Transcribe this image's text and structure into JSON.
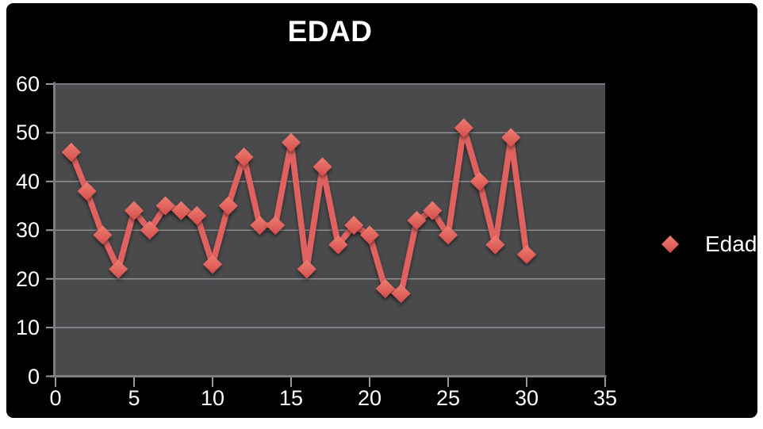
{
  "chart_data": {
    "type": "line",
    "title": "EDAD",
    "xlabel": "",
    "ylabel": "",
    "xlim": [
      0,
      35
    ],
    "ylim": [
      0,
      60
    ],
    "x_ticks": [
      0,
      5,
      10,
      15,
      20,
      25,
      30,
      35
    ],
    "y_ticks": [
      0,
      10,
      20,
      30,
      40,
      50,
      60
    ],
    "grid": "horizontal",
    "legend_position": "right",
    "series": [
      {
        "name": "Edad",
        "x": [
          1,
          2,
          3,
          4,
          5,
          6,
          7,
          8,
          9,
          10,
          11,
          12,
          13,
          14,
          15,
          16,
          17,
          18,
          19,
          20,
          21,
          22,
          23,
          24,
          25,
          26,
          27,
          28,
          29,
          30
        ],
        "values": [
          46,
          38,
          29,
          22,
          34,
          30,
          35,
          34,
          33,
          23,
          35,
          45,
          31,
          31,
          48,
          22,
          43,
          27,
          31,
          29,
          18,
          17,
          32,
          34,
          29,
          51,
          40,
          27,
          49,
          25
        ]
      }
    ],
    "legend": [
      {
        "label": "Edad"
      }
    ],
    "colors": {
      "page_bg": "#ffffff",
      "panel_bg": "#000000",
      "plot_bg": "#4a4a4d",
      "gridline": "#98989b",
      "axis": "#7e7e81",
      "tick": "#98989b",
      "series_line": "#e06260",
      "marker_top": "#ee7e71",
      "marker_bottom": "#d44d4c",
      "text": "#ffffff"
    }
  }
}
